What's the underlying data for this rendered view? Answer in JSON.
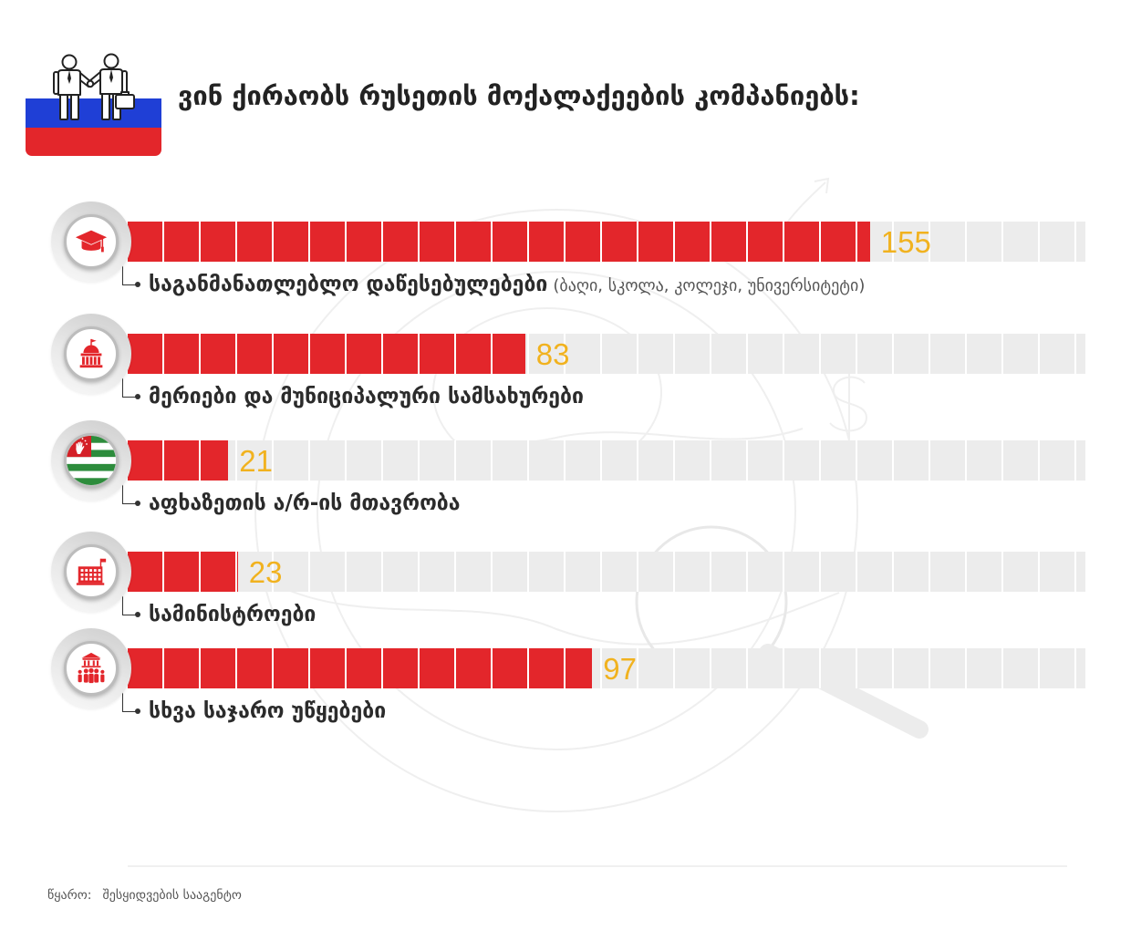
{
  "header_icon": "businessmen-handshake-icon",
  "colors": {
    "bar": "#e3262b",
    "track": "#ececec",
    "value": "#f1b21f",
    "text": "#2b2b2b",
    "flag_white": "#ffffff",
    "flag_blue": "#1f3fd6",
    "flag_red": "#e3262b"
  },
  "chart_data": {
    "type": "bar",
    "orientation": "horizontal",
    "title": "ვინ ქირაობს რუსეთის მოქალაქეების კომპანიებს:",
    "categories": [
      "საგანმანათლებლო დაწესებულებები",
      "მერიები და მუნიციპალური სამსახურები",
      "აფხაზეთის ა/რ-ის მთავრობა",
      "სამინისტროები",
      "სხვა საჯარო უწყებები"
    ],
    "category_notes": [
      "(ბაღი, სკოლა, კოლეჯი, უნივერსიტეტი)",
      "",
      "",
      "",
      ""
    ],
    "category_icons": [
      "graduation-cap-icon",
      "city-hall-icon",
      "abkhazia-flag-icon",
      "ministry-building-icon",
      "public-agency-icon"
    ],
    "values": [
      155,
      83,
      21,
      23,
      97
    ],
    "xlim": [
      0,
      200
    ],
    "grid": false,
    "legend": "none"
  },
  "source": {
    "label": "წყარო:",
    "text": "შესყიდვების სააგენტო"
  }
}
